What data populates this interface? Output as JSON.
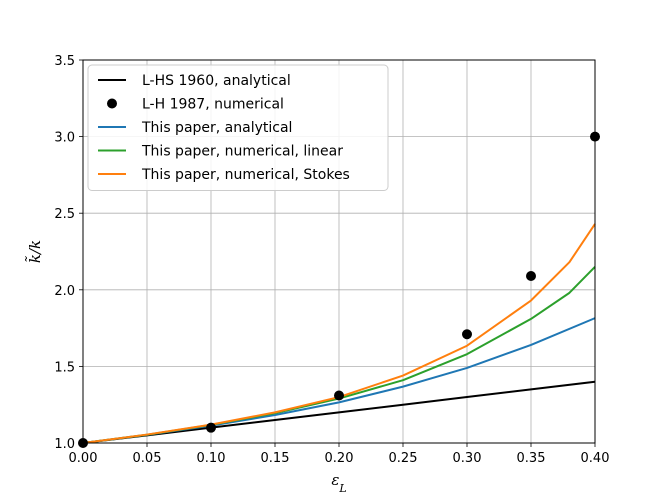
{
  "chart_data": {
    "type": "line",
    "title": "",
    "xlabel": "ε",
    "xlabel_sub": "L",
    "ylabel": "k̃/k",
    "xlim": [
      0.0,
      0.4
    ],
    "ylim": [
      1.0,
      3.5
    ],
    "xticks": [
      0.0,
      0.05,
      0.1,
      0.15,
      0.2,
      0.25,
      0.3,
      0.35,
      0.4
    ],
    "yticks": [
      1.0,
      1.5,
      2.0,
      2.5,
      3.0,
      3.5
    ],
    "xtick_labels": [
      "0.00",
      "0.05",
      "0.10",
      "0.15",
      "0.20",
      "0.25",
      "0.30",
      "0.35",
      "0.40"
    ],
    "ytick_labels": [
      "1.0",
      "1.5",
      "2.0",
      "2.5",
      "3.0",
      "3.5"
    ],
    "grid": true,
    "legend_position": "top-left",
    "series": [
      {
        "name": "L-HS 1960, analytical",
        "kind": "line",
        "color": "#000000",
        "x": [
          0.0,
          0.05,
          0.1,
          0.15,
          0.2,
          0.25,
          0.3,
          0.35,
          0.4
        ],
        "y": [
          1.0,
          1.05,
          1.1,
          1.15,
          1.2,
          1.25,
          1.3,
          1.35,
          1.4
        ]
      },
      {
        "name": "L-H 1987, numerical",
        "kind": "scatter",
        "color": "#000000",
        "x": [
          0.0,
          0.1,
          0.2,
          0.3,
          0.35,
          0.4
        ],
        "y": [
          1.0,
          1.1,
          1.31,
          1.71,
          2.09,
          3.0
        ]
      },
      {
        "name": "This paper, analytical",
        "kind": "line",
        "color": "#1f77b4",
        "x": [
          0.0,
          0.05,
          0.1,
          0.15,
          0.2,
          0.25,
          0.3,
          0.35,
          0.4
        ],
        "y": [
          1.0,
          1.053,
          1.113,
          1.183,
          1.265,
          1.368,
          1.49,
          1.64,
          1.815
        ]
      },
      {
        "name": "This paper, numerical, linear",
        "kind": "line",
        "color": "#2ca02c",
        "x": [
          0.0,
          0.05,
          0.1,
          0.15,
          0.2,
          0.25,
          0.3,
          0.35,
          0.38,
          0.4
        ],
        "y": [
          1.0,
          1.054,
          1.118,
          1.195,
          1.29,
          1.41,
          1.58,
          1.81,
          1.98,
          2.15
        ]
      },
      {
        "name": "This paper, numerical, Stokes",
        "kind": "line",
        "color": "#ff7f0e",
        "x": [
          0.0,
          0.05,
          0.1,
          0.15,
          0.2,
          0.25,
          0.3,
          0.35,
          0.38,
          0.4
        ],
        "y": [
          1.0,
          1.055,
          1.12,
          1.2,
          1.3,
          1.44,
          1.635,
          1.93,
          2.18,
          2.43
        ]
      }
    ]
  }
}
